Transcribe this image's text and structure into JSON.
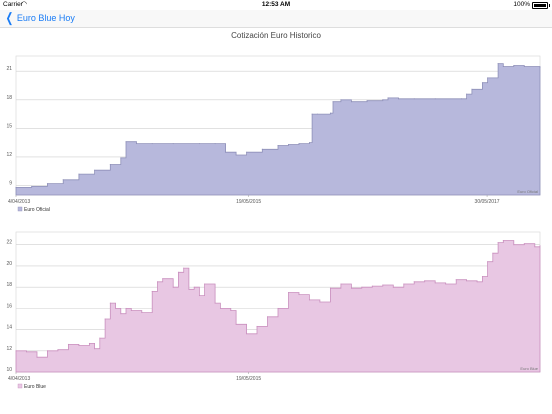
{
  "status": {
    "carrier": "Carrier",
    "time": "12:53 AM",
    "battery": "100%"
  },
  "nav": {
    "back_label": "Euro Blue Hoy"
  },
  "title": "Cotización Euro Historico",
  "chart_data": [
    {
      "type": "area",
      "legend": "Euro Oficial",
      "watermark": "Euro Oficial",
      "color": "#b7b8dc",
      "line_color": "#8e8fb8",
      "ylim": [
        8,
        22.6
      ],
      "yticks": [
        "9",
        "12",
        "15",
        "18",
        "21"
      ],
      "ytick_values": [
        9,
        12,
        15,
        18,
        21
      ],
      "xtick_labels": [
        "4/04/2013",
        "19/05/2015",
        "30/05/2017"
      ],
      "x_range": [
        0,
        1
      ],
      "xtick_positions": [
        0,
        0.444,
        0.899
      ],
      "x": [
        0,
        0.03,
        0.06,
        0.09,
        0.12,
        0.15,
        0.18,
        0.2,
        0.21,
        0.23,
        0.26,
        0.3,
        0.35,
        0.38,
        0.4,
        0.42,
        0.44,
        0.47,
        0.5,
        0.52,
        0.54,
        0.56,
        0.565,
        0.575,
        0.6,
        0.605,
        0.62,
        0.64,
        0.67,
        0.7,
        0.71,
        0.73,
        0.76,
        0.8,
        0.85,
        0.86,
        0.87,
        0.89,
        0.9,
        0.92,
        0.93,
        0.95,
        0.97,
        1.0
      ],
      "y": [
        8.8,
        8.9,
        9.2,
        9.6,
        10.2,
        10.6,
        11.2,
        11.9,
        13.6,
        13.4,
        13.4,
        13.4,
        13.4,
        13.4,
        12.5,
        12.2,
        12.5,
        12.8,
        13.2,
        13.3,
        13.4,
        13.5,
        16.5,
        16.5,
        16.6,
        17.8,
        18.0,
        17.8,
        17.9,
        18.0,
        18.2,
        18.1,
        18.1,
        18.1,
        18.1,
        18.6,
        19.1,
        19.8,
        20.3,
        21.8,
        21.5,
        21.6,
        21.5,
        21.4
      ]
    },
    {
      "type": "area",
      "legend": "Euro Blue",
      "watermark": "Euro Blue",
      "color": "#e8c7e3",
      "line_color": "#c98fbe",
      "ylim": [
        10,
        23.2
      ],
      "yticks": [
        "10",
        "12",
        "14",
        "16",
        "18",
        "20",
        "22"
      ],
      "ytick_values": [
        10,
        12,
        14,
        16,
        18,
        20,
        22
      ],
      "xtick_labels": [
        "4/04/2013",
        "19/05/2015"
      ],
      "x_range": [
        0,
        1
      ],
      "xtick_positions": [
        0,
        0.444
      ],
      "x": [
        0,
        0.02,
        0.04,
        0.06,
        0.08,
        0.1,
        0.12,
        0.14,
        0.15,
        0.16,
        0.17,
        0.18,
        0.19,
        0.2,
        0.21,
        0.22,
        0.24,
        0.26,
        0.27,
        0.28,
        0.3,
        0.31,
        0.32,
        0.33,
        0.34,
        0.35,
        0.36,
        0.38,
        0.39,
        0.41,
        0.42,
        0.44,
        0.46,
        0.48,
        0.5,
        0.52,
        0.54,
        0.56,
        0.58,
        0.6,
        0.62,
        0.64,
        0.66,
        0.68,
        0.7,
        0.72,
        0.74,
        0.76,
        0.78,
        0.8,
        0.82,
        0.84,
        0.86,
        0.88,
        0.89,
        0.9,
        0.91,
        0.92,
        0.93,
        0.95,
        0.97,
        0.99,
        1.0
      ],
      "y": [
        12.0,
        11.9,
        11.4,
        12.0,
        12.1,
        12.6,
        12.5,
        12.7,
        12.2,
        13.2,
        15.0,
        16.5,
        16.0,
        15.5,
        16.0,
        15.8,
        15.6,
        17.6,
        18.5,
        18.8,
        18.0,
        19.4,
        19.8,
        17.8,
        18.0,
        17.2,
        18.3,
        16.5,
        16.0,
        15.8,
        14.5,
        13.6,
        14.3,
        15.2,
        16.0,
        17.5,
        17.3,
        16.8,
        16.6,
        17.9,
        18.3,
        17.9,
        18.0,
        18.1,
        18.2,
        18.0,
        18.3,
        18.5,
        18.6,
        18.4,
        18.3,
        18.7,
        18.6,
        18.5,
        19.0,
        20.4,
        21.2,
        22.2,
        22.4,
        22.0,
        22.1,
        21.8,
        21.9
      ]
    }
  ]
}
